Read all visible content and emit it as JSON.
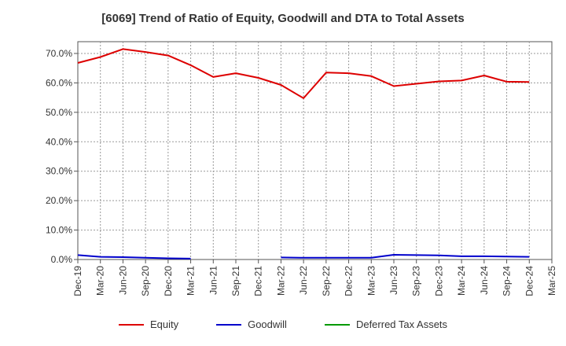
{
  "chart_data": {
    "type": "line",
    "title": "[6069]  Trend of Ratio of Equity, Goodwill and DTA to Total Assets",
    "x": [
      "Dec-19",
      "Mar-20",
      "Jun-20",
      "Sep-20",
      "Dec-20",
      "Mar-21",
      "Jun-21",
      "Sep-21",
      "Dec-21",
      "Mar-22",
      "Jun-22",
      "Sep-22",
      "Dec-22",
      "Mar-23",
      "Jun-23",
      "Sep-23",
      "Dec-23",
      "Mar-24",
      "Jun-24",
      "Sep-24",
      "Dec-24",
      "Mar-25"
    ],
    "y_ticks": [
      "0.0%",
      "10.0%",
      "20.0%",
      "30.0%",
      "40.0%",
      "50.0%",
      "60.0%",
      "70.0%"
    ],
    "ylim": [
      0,
      74
    ],
    "grid": true,
    "legend_position": "bottom",
    "series": [
      {
        "name": "Equity",
        "color": "#dd0000",
        "values": [
          66.8,
          68.8,
          71.5,
          70.5,
          69.3,
          66.0,
          62.0,
          63.3,
          61.7,
          59.3,
          54.8,
          63.5,
          63.3,
          62.3,
          58.9,
          59.7,
          60.5,
          60.8,
          62.5,
          60.4,
          60.3,
          null
        ]
      },
      {
        "name": "Goodwill",
        "color": "#0000cc",
        "values": [
          1.5,
          0.9,
          0.8,
          0.6,
          0.4,
          0.3,
          null,
          null,
          null,
          0.7,
          0.6,
          0.6,
          0.6,
          0.6,
          1.6,
          1.5,
          1.4,
          1.1,
          1.1,
          1.0,
          0.9,
          null
        ]
      },
      {
        "name": "Deferred Tax Assets",
        "color": "#009900",
        "values": [
          null,
          null,
          null,
          null,
          null,
          null,
          null,
          null,
          null,
          null,
          null,
          null,
          null,
          null,
          null,
          null,
          null,
          null,
          null,
          null,
          null,
          null
        ]
      }
    ]
  }
}
